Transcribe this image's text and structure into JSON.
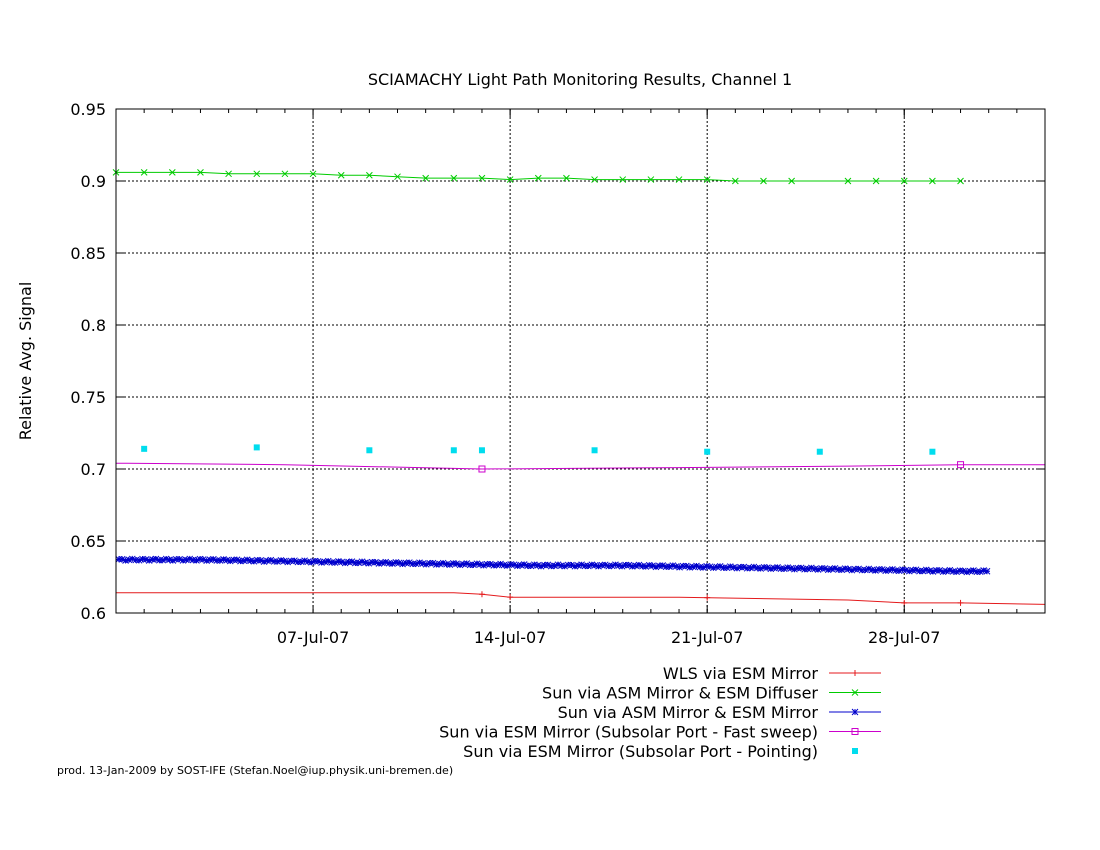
{
  "footer": "prod. 13-Jan-2009 by SOST-IFE (Stefan.Noel@iup.physik.uni-bremen.de)",
  "chart_data": {
    "type": "line",
    "title": "SCIAMACHY Light Path Monitoring Results, Channel 1",
    "xlabel": "",
    "ylabel": "Relative Avg. Signal",
    "xlim": [
      "2007-06-30",
      "2007-08-02"
    ],
    "ylim": [
      0.6,
      0.95
    ],
    "yticks": [
      0.6,
      0.65,
      0.7,
      0.75,
      0.8,
      0.85,
      0.9,
      0.95
    ],
    "ytick_labels": [
      "0.6",
      "0.65",
      "0.7",
      "0.75",
      "0.8",
      "0.85",
      "0.9",
      "0.95"
    ],
    "xticks": [
      "2007-07-07",
      "2007-07-14",
      "2007-07-21",
      "2007-07-28"
    ],
    "xtick_labels": [
      "07-Jul-07",
      "14-Jul-07",
      "21-Jul-07",
      "28-Jul-07"
    ],
    "grid": true,
    "legend_position": "bottom-right",
    "series": [
      {
        "name": "WLS via ESM Mirror",
        "color": "#e41a1c",
        "marker": "plus",
        "x": [
          "2007-06-30",
          "2007-07-06",
          "2007-07-12",
          "2007-07-13",
          "2007-07-14",
          "2007-07-20",
          "2007-07-26",
          "2007-07-28",
          "2007-07-30",
          "2007-08-02"
        ],
        "y": [
          0.614,
          0.614,
          0.614,
          0.613,
          0.611,
          0.611,
          0.609,
          0.607,
          0.607,
          0.606
        ],
        "marker_x": [
          "2007-07-13",
          "2007-07-14",
          "2007-07-21",
          "2007-07-28",
          "2007-07-30"
        ]
      },
      {
        "name": "Sun via ASM Mirror & ESM Diffuser",
        "color": "#00cc00",
        "marker": "cross",
        "x": [
          "2007-06-30",
          "2007-07-01",
          "2007-07-02",
          "2007-07-03",
          "2007-07-04",
          "2007-07-05",
          "2007-07-06",
          "2007-07-07",
          "2007-07-08",
          "2007-07-09",
          "2007-07-10",
          "2007-07-11",
          "2007-07-12",
          "2007-07-13",
          "2007-07-14",
          "2007-07-15",
          "2007-07-16",
          "2007-07-17",
          "2007-07-18",
          "2007-07-19",
          "2007-07-20",
          "2007-07-21",
          "2007-07-22",
          "2007-07-23",
          "2007-07-24",
          "2007-07-26",
          "2007-07-27",
          "2007-07-28",
          "2007-07-29",
          "2007-07-30"
        ],
        "y": [
          0.906,
          0.906,
          0.906,
          0.906,
          0.905,
          0.905,
          0.905,
          0.905,
          0.904,
          0.904,
          0.903,
          0.902,
          0.902,
          0.902,
          0.901,
          0.902,
          0.902,
          0.901,
          0.901,
          0.901,
          0.901,
          0.901,
          0.9,
          0.9,
          0.9,
          0.9,
          0.9,
          0.9,
          0.9,
          0.9
        ]
      },
      {
        "name": "Sun via ASM Mirror & ESM Mirror",
        "color": "#0000cc",
        "marker": "star",
        "x": [
          "2007-06-30",
          "2007-07-03",
          "2007-07-06",
          "2007-07-09",
          "2007-07-12",
          "2007-07-15",
          "2007-07-18",
          "2007-07-21",
          "2007-07-24",
          "2007-07-27",
          "2007-07-30",
          "2007-07-31"
        ],
        "y": [
          0.637,
          0.637,
          0.636,
          0.635,
          0.634,
          0.633,
          0.633,
          0.632,
          0.631,
          0.63,
          0.629,
          0.629
        ]
      },
      {
        "name": "Sun via ESM Mirror (Subsolar Port - Fast sweep)",
        "color": "#cc00cc",
        "marker": "square",
        "x": [
          "2007-06-30",
          "2007-07-06",
          "2007-07-13",
          "2007-07-20",
          "2007-07-26",
          "2007-07-30",
          "2007-08-02"
        ],
        "y": [
          0.704,
          0.703,
          0.7,
          0.701,
          0.702,
          0.703,
          0.703
        ],
        "marker_x": [
          "2007-07-13",
          "2007-07-30"
        ]
      },
      {
        "name": "Sun via ESM Mirror (Subsolar Port - Pointing)",
        "color": "#00ddee",
        "marker": "dot",
        "x": [
          "2007-07-01",
          "2007-07-05",
          "2007-07-09",
          "2007-07-12",
          "2007-07-13",
          "2007-07-17",
          "2007-07-21",
          "2007-07-25",
          "2007-07-29"
        ],
        "y": [
          0.714,
          0.715,
          0.713,
          0.713,
          0.713,
          0.713,
          0.712,
          0.712,
          0.712
        ]
      }
    ]
  }
}
